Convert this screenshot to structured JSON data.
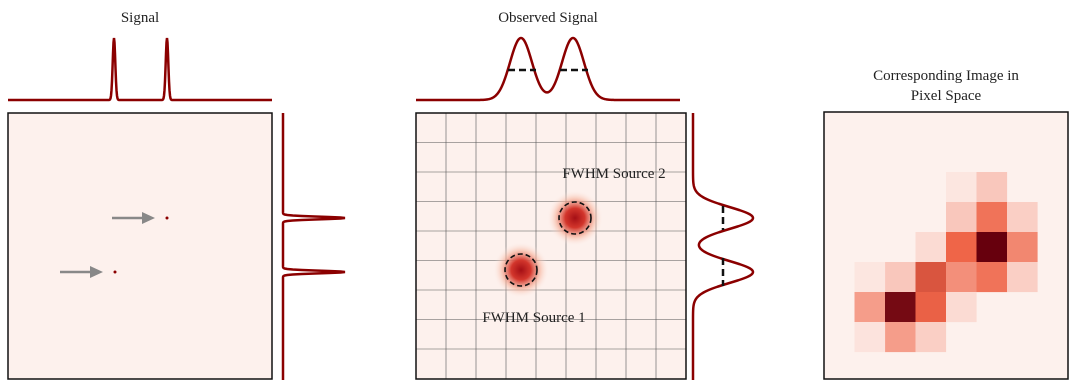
{
  "panels": [
    {
      "title": "Signal"
    },
    {
      "title": "Observed Signal",
      "labels": [
        "FWHM Source 2",
        "FWHM Source 1"
      ]
    },
    {
      "title": [
        "Corresponding Image in",
        "Pixel Space"
      ]
    }
  ]
}
